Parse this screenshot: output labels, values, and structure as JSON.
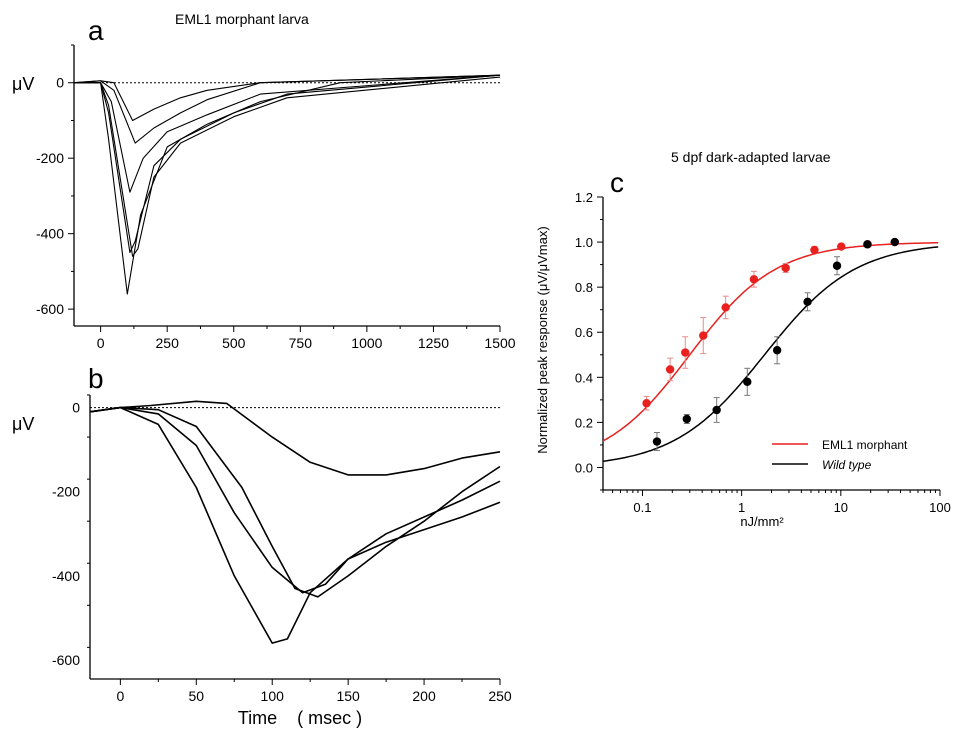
{
  "chart_data": [
    {
      "panel": "a",
      "type": "line",
      "title": "EML1 morphant  larva",
      "ylabel": "μV",
      "xlim": [
        -100,
        1500
      ],
      "ylim": [
        -650,
        100
      ],
      "x_ticks": [
        0,
        250,
        500,
        750,
        1000,
        1250,
        1500
      ],
      "y_ticks": [
        0,
        -200,
        -400,
        -600
      ],
      "baseline": 0,
      "series": [
        {
          "x": [
            -100,
            0,
            50,
            120,
            200,
            300,
            400,
            600,
            1500
          ],
          "y": [
            0,
            5,
            0,
            -100,
            -70,
            -40,
            -20,
            0,
            20
          ]
        },
        {
          "x": [
            -100,
            0,
            50,
            130,
            200,
            300,
            400,
            600,
            1500
          ],
          "y": [
            0,
            5,
            -20,
            -160,
            -120,
            -80,
            -45,
            0,
            20
          ]
        },
        {
          "x": [
            -100,
            0,
            40,
            110,
            160,
            250,
            400,
            600,
            1500
          ],
          "y": [
            0,
            0,
            -50,
            -290,
            -200,
            -130,
            -85,
            -30,
            20
          ]
        },
        {
          "x": [
            -100,
            0,
            30,
            110,
            130,
            200,
            300,
            500,
            700,
            1500
          ],
          "y": [
            0,
            0,
            -80,
            -450,
            -420,
            -220,
            -150,
            -80,
            -30,
            20
          ]
        },
        {
          "x": [
            -100,
            0,
            30,
            120,
            140,
            200,
            300,
            500,
            700,
            1500
          ],
          "y": [
            0,
            0,
            -60,
            -460,
            -440,
            -250,
            -160,
            -90,
            -40,
            15
          ]
        },
        {
          "x": [
            -100,
            0,
            30,
            100,
            150,
            250,
            400,
            600,
            900,
            1500
          ],
          "y": [
            0,
            0,
            -150,
            -560,
            -350,
            -170,
            -110,
            -50,
            0,
            20
          ]
        }
      ]
    },
    {
      "panel": "b",
      "type": "line",
      "ylabel": "μV",
      "xlabel": "Time    ( msec )",
      "xlim": [
        -20,
        250
      ],
      "ylim": [
        -650,
        30
      ],
      "x_ticks": [
        0,
        50,
        100,
        150,
        200,
        250
      ],
      "y_ticks": [
        0,
        -200,
        -400,
        -600
      ],
      "baseline": 0,
      "series": [
        {
          "x": [
            -20,
            0,
            20,
            50,
            70,
            100,
            125,
            150,
            175,
            200,
            225,
            250
          ],
          "y": [
            -10,
            0,
            5,
            15,
            10,
            -70,
            -130,
            -160,
            -160,
            -145,
            -120,
            -105
          ]
        },
        {
          "x": [
            -20,
            0,
            25,
            50,
            80,
            100,
            115,
            130,
            150,
            175,
            200,
            225,
            250
          ],
          "y": [
            -10,
            0,
            -5,
            -45,
            -190,
            -330,
            -430,
            -450,
            -400,
            -330,
            -270,
            -200,
            -140
          ]
        },
        {
          "x": [
            -20,
            0,
            25,
            50,
            75,
            100,
            120,
            135,
            150,
            175,
            200,
            225,
            250
          ],
          "y": [
            -10,
            0,
            -15,
            -90,
            -250,
            -380,
            -440,
            -420,
            -360,
            -300,
            -260,
            -220,
            -175
          ]
        },
        {
          "x": [
            -20,
            0,
            25,
            50,
            75,
            100,
            110,
            125,
            150,
            175,
            200,
            225,
            250
          ],
          "y": [
            -10,
            0,
            -40,
            -190,
            -400,
            -560,
            -550,
            -440,
            -360,
            -320,
            -290,
            -260,
            -225
          ]
        }
      ]
    },
    {
      "panel": "c",
      "type": "scatter",
      "title": "5 dpf dark-adapted larvae",
      "xlabel": "nJ/mm²",
      "ylabel": "Normalized peak response (μV/μVmax)",
      "xscale": "log",
      "xlim": [
        0.04,
        100
      ],
      "ylim": [
        -0.1,
        1.2
      ],
      "x_ticks": [
        0.1,
        1,
        10,
        100
      ],
      "y_ticks": [
        0.0,
        0.2,
        0.4,
        0.6,
        0.8,
        1.0,
        1.2
      ],
      "legend_position": "bottom-right",
      "series": [
        {
          "name": "EML1 morphant",
          "color": "#e8201e",
          "x": [
            0.11,
            0.19,
            0.27,
            0.41,
            0.69,
            1.33,
            2.78,
            5.42,
            10.1,
            18.7,
            35.0
          ],
          "y": [
            0.285,
            0.435,
            0.51,
            0.585,
            0.71,
            0.835,
            0.885,
            0.965,
            0.98,
            0.99,
            1.0
          ],
          "err": [
            0.03,
            0.05,
            0.07,
            0.08,
            0.05,
            0.035,
            0.02,
            0.015,
            0.01,
            0.01,
            0.0
          ],
          "fit": {
            "x50": 0.3,
            "n": 1.0
          }
        },
        {
          "name": "Wild type",
          "color": "#000000",
          "x": [
            0.14,
            0.28,
            0.56,
            1.14,
            2.28,
            4.62,
            9.16,
            18.5,
            35.0
          ],
          "y": [
            0.115,
            0.215,
            0.255,
            0.38,
            0.52,
            0.735,
            0.895,
            0.99,
            1.0
          ],
          "err": [
            0.04,
            0.02,
            0.055,
            0.06,
            0.06,
            0.04,
            0.04,
            0.01,
            0.0
          ],
          "fit": {
            "x50": 1.7,
            "n": 0.95
          }
        }
      ]
    }
  ],
  "panel_letters": [
    "a",
    "b",
    "c"
  ],
  "legend": {
    "morphant": "EML1 morphant",
    "wildtype": "Wild type"
  }
}
